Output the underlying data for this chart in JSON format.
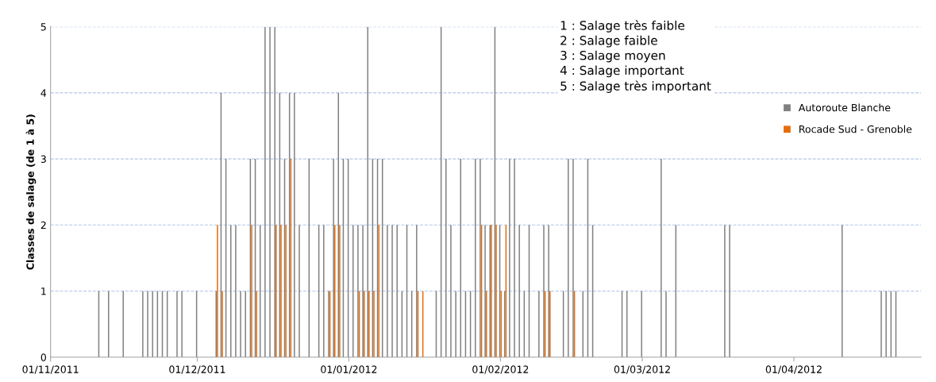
{
  "chart_data": {
    "type": "bar",
    "ylabel": "Classes de salage (de 1 à 5)",
    "ylim": [
      0,
      5
    ],
    "yticks": [
      0,
      1,
      2,
      3,
      4,
      5
    ],
    "xlim": [
      "2011-11-01",
      "2012-04-27"
    ],
    "xticks": [
      {
        "value": "2011-11-01",
        "label": "01/11/2011"
      },
      {
        "value": "2011-12-01",
        "label": "01/12/2011"
      },
      {
        "value": "2012-01-01",
        "label": "01/01/2012"
      },
      {
        "value": "2012-02-01",
        "label": "01/02/2012"
      },
      {
        "value": "2012-03-01",
        "label": "01/03/2012"
      },
      {
        "value": "2012-04-01",
        "label": "01/04/2012"
      }
    ],
    "grid": "y",
    "legend": "right",
    "annotations": [
      "1 : Salage très faible",
      "2 : Salage faible",
      "3 : Salage moyen",
      "4 : Salage important",
      "5 : Salage très important"
    ],
    "series": [
      {
        "name": "Autoroute Blanche",
        "color": "#808080",
        "x": [
          "2011-11-11",
          "2011-11-13",
          "2011-11-16",
          "2011-11-20",
          "2011-11-21",
          "2011-11-22",
          "2011-11-23",
          "2011-11-24",
          "2011-11-25",
          "2011-11-27",
          "2011-11-28",
          "2011-12-01",
          "2011-12-05",
          "2011-12-06",
          "2011-12-07",
          "2011-12-08",
          "2011-12-09",
          "2011-12-10",
          "2011-12-11",
          "2011-12-12",
          "2011-12-13",
          "2011-12-14",
          "2011-12-15",
          "2011-12-16",
          "2011-12-17",
          "2011-12-18",
          "2011-12-19",
          "2011-12-20",
          "2011-12-21",
          "2011-12-22",
          "2011-12-24",
          "2011-12-26",
          "2011-12-27",
          "2011-12-28",
          "2011-12-29",
          "2011-12-30",
          "2011-12-31",
          "2012-01-01",
          "2012-01-02",
          "2012-01-03",
          "2012-01-04",
          "2012-01-05",
          "2012-01-06",
          "2012-01-07",
          "2012-01-08",
          "2012-01-09",
          "2012-01-10",
          "2012-01-11",
          "2012-01-12",
          "2012-01-13",
          "2012-01-14",
          "2012-01-15",
          "2012-01-19",
          "2012-01-20",
          "2012-01-21",
          "2012-01-22",
          "2012-01-23",
          "2012-01-24",
          "2012-01-25",
          "2012-01-26",
          "2012-01-27",
          "2012-01-28",
          "2012-01-29",
          "2012-01-30",
          "2012-01-31",
          "2012-02-01",
          "2012-02-02",
          "2012-02-03",
          "2012-02-04",
          "2012-02-05",
          "2012-02-06",
          "2012-02-07",
          "2012-02-09",
          "2012-02-10",
          "2012-02-11",
          "2012-02-14",
          "2012-02-15",
          "2012-02-16",
          "2012-02-18",
          "2012-02-19",
          "2012-02-20",
          "2012-02-26",
          "2012-02-27",
          "2012-03-01",
          "2012-03-05",
          "2012-03-06",
          "2012-03-08",
          "2012-03-18",
          "2012-03-19",
          "2012-04-11",
          "2012-04-19",
          "2012-04-20",
          "2012-04-21",
          "2012-04-22"
        ],
        "values": [
          1,
          1,
          1,
          1,
          1,
          1,
          1,
          1,
          1,
          1,
          1,
          1,
          1,
          4,
          3,
          2,
          2,
          1,
          1,
          3,
          3,
          2,
          5,
          5,
          5,
          4,
          3,
          4,
          4,
          2,
          3,
          2,
          2,
          1,
          3,
          4,
          3,
          3,
          2,
          2,
          2,
          5,
          3,
          3,
          3,
          2,
          2,
          2,
          1,
          2,
          1,
          2,
          1,
          5,
          3,
          2,
          1,
          3,
          1,
          1,
          3,
          3,
          2,
          2,
          5,
          2,
          1,
          3,
          3,
          2,
          1,
          2,
          1,
          2,
          2,
          1,
          3,
          3,
          1,
          3,
          2,
          1,
          1,
          1,
          3,
          1,
          2,
          2,
          2,
          2,
          1,
          1,
          1,
          1
        ]
      },
      {
        "name": "Rocade Sud - Grenoble",
        "color": "#e46c0a",
        "x": [
          "2011-12-05",
          "2011-12-06",
          "2011-12-12",
          "2011-12-13",
          "2011-12-17",
          "2011-12-18",
          "2011-12-19",
          "2011-12-20",
          "2011-12-28",
          "2011-12-29",
          "2011-12-30",
          "2012-01-03",
          "2012-01-04",
          "2012-01-05",
          "2012-01-06",
          "2012-01-07",
          "2012-01-15",
          "2012-01-16",
          "2012-01-28",
          "2012-01-29",
          "2012-01-30",
          "2012-01-31",
          "2012-02-01",
          "2012-02-02",
          "2012-02-10",
          "2012-02-11",
          "2012-02-16"
        ],
        "values": [
          2,
          1,
          2,
          1,
          2,
          2,
          2,
          3,
          1,
          2,
          2,
          1,
          1,
          1,
          1,
          2,
          1,
          1,
          2,
          1,
          2,
          2,
          1,
          2,
          1,
          1,
          1
        ]
      }
    ]
  }
}
